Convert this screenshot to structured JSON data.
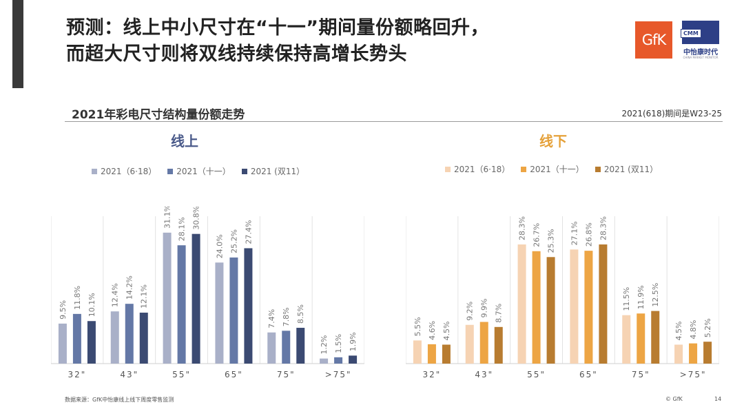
{
  "title_line1": "预测：线上中小尺寸在“十一”期间量份额略回升，",
  "title_line2": "而超大尺寸则将双线持续保持高增长势头",
  "logos": {
    "gfk": "GfK",
    "cmm_tag": "CMM",
    "cmm_cn": "中怡康时代",
    "cmm_en": "CHINA MARKET MONITOR"
  },
  "subtitle": "2021年彩电尺寸结构量份额走势",
  "note": "2021(618)期间是W23-25",
  "footer": {
    "source": "数据来源：GfK中怡康线上线下周度零售监测",
    "copyright": "© GfK",
    "page": "14"
  },
  "chart_data": [
    {
      "type": "bar",
      "title": "线上",
      "title_color": "#4a5a8a",
      "categories": [
        "32\"",
        "43\"",
        "55\"",
        "65\"",
        "75\"",
        ">75\""
      ],
      "series": [
        {
          "name": "2021（6·18）",
          "color": "#a9b0c8",
          "values": [
            9.5,
            12.4,
            31.1,
            24.0,
            7.4,
            1.2
          ]
        },
        {
          "name": "2021（十一）",
          "color": "#6478a6",
          "values": [
            11.8,
            14.2,
            28.1,
            25.2,
            7.8,
            1.5
          ]
        },
        {
          "name": "2021 (双11）",
          "color": "#3b4a72",
          "values": [
            10.1,
            12.1,
            30.8,
            27.4,
            8.5,
            1.9
          ]
        }
      ],
      "value_format": "%",
      "ylim": [
        0,
        35
      ]
    },
    {
      "type": "bar",
      "title": "线下",
      "title_color": "#e5a13a",
      "categories": [
        "32\"",
        "43\"",
        "55\"",
        "65\"",
        "75\"",
        ">75\""
      ],
      "series": [
        {
          "name": "2021（6·18）",
          "color": "#f6d3b3",
          "values": [
            5.5,
            9.2,
            28.3,
            27.1,
            11.5,
            4.5
          ]
        },
        {
          "name": "2021（十一）",
          "color": "#eda544",
          "values": [
            4.6,
            9.9,
            26.7,
            26.8,
            11.9,
            4.8
          ]
        },
        {
          "name": "2021 (双11）",
          "color": "#b87c30",
          "values": [
            4.5,
            8.7,
            25.3,
            28.3,
            12.5,
            5.2
          ]
        }
      ],
      "value_format": "%",
      "ylim": [
        0,
        35
      ]
    }
  ]
}
